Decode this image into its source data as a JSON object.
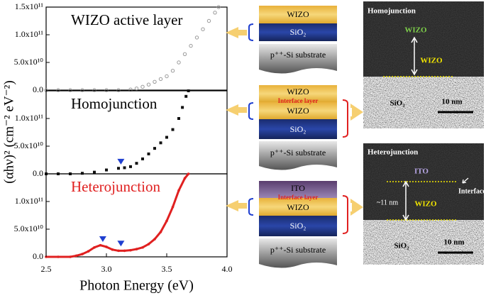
{
  "chart_data": [
    {
      "type": "scatter",
      "title": "WIZO active layer",
      "marker": "open-circle",
      "color": "#9a9a9a",
      "x": [
        2.5,
        2.6,
        2.7,
        2.8,
        2.9,
        3.0,
        3.1,
        3.2,
        3.25,
        3.3,
        3.35,
        3.4,
        3.45,
        3.5,
        3.55,
        3.6,
        3.65,
        3.7,
        3.75,
        3.8,
        3.85,
        3.9,
        3.93
      ],
      "values": [
        0,
        0,
        0,
        0,
        0,
        0,
        0,
        1000000000.0,
        3000000000.0,
        6000000000.0,
        10000000000.0,
        15000000000.0,
        20000000000.0,
        25000000000.0,
        35000000000.0,
        50000000000.0,
        65000000000.0,
        80000000000.0,
        95000000000.0,
        110000000000.0,
        125000000000.0,
        140000000000.0,
        150000000000.0
      ],
      "xlim": [
        2.5,
        4.0
      ],
      "ylim": [
        0,
        150000000000.0
      ],
      "yticks": [
        {
          "value": 0,
          "label": "0.0"
        },
        {
          "value": 50000000000.0,
          "label": "5.0x10¹⁰"
        },
        {
          "value": 100000000000.0,
          "label": "1.0x10¹¹"
        },
        {
          "value": 150000000000.0,
          "label": "1.5x10¹¹"
        }
      ]
    },
    {
      "type": "scatter",
      "title": "Homojunction",
      "marker": "square",
      "color": "#111111",
      "x": [
        2.5,
        2.6,
        2.7,
        2.8,
        2.9,
        3.0,
        3.1,
        3.15,
        3.2,
        3.25,
        3.3,
        3.35,
        3.4,
        3.45,
        3.5,
        3.55,
        3.6,
        3.63,
        3.66,
        3.68
      ],
      "values": [
        0,
        0,
        0,
        1000000000.0,
        3000000000.0,
        7000000000.0,
        10000000000.0,
        11000000000.0,
        13000000000.0,
        19000000000.0,
        27000000000.0,
        36000000000.0,
        46000000000.0,
        56000000000.0,
        66000000000.0,
        80000000000.0,
        100000000000.0,
        120000000000.0,
        140000000000.0,
        150000000000.0
      ],
      "markers": {
        "x": [
          3.12
        ],
        "y": [
          22000000000.0
        ],
        "color": "#1f3fd0"
      },
      "xlim": [
        2.5,
        4.0
      ],
      "ylim": [
        0,
        150000000000.0
      ],
      "yticks": [
        {
          "value": 0,
          "label": "0.0"
        },
        {
          "value": 50000000000.0,
          "label": "5.0x10¹⁰"
        },
        {
          "value": 100000000000.0,
          "label": "1.0x10¹¹"
        }
      ],
      "ylabel": "(αhν)² (cm⁻² eV⁻²)"
    },
    {
      "type": "line",
      "title": "Heterojunction",
      "marker": "dot",
      "color": "#e02020",
      "x": [
        2.5,
        2.6,
        2.7,
        2.75,
        2.8,
        2.85,
        2.9,
        2.95,
        3.0,
        3.05,
        3.1,
        3.15,
        3.2,
        3.25,
        3.3,
        3.35,
        3.4,
        3.45,
        3.5,
        3.55,
        3.6,
        3.65,
        3.68
      ],
      "values": [
        0,
        0,
        0,
        2000000000.0,
        5000000000.0,
        10000000000.0,
        17000000000.0,
        21000000000.0,
        18000000000.0,
        13000000000.0,
        11000000000.0,
        11000000000.0,
        12000000000.0,
        14000000000.0,
        17000000000.0,
        23000000000.0,
        32000000000.0,
        45000000000.0,
        65000000000.0,
        90000000000.0,
        120000000000.0,
        142000000000.0,
        150000000000.0
      ],
      "markers": {
        "x": [
          2.97,
          3.12
        ],
        "y": [
          32000000000.0,
          24000000000.0
        ],
        "color": "#1f3fd0"
      },
      "xlim": [
        2.5,
        4.0
      ],
      "ylim": [
        0,
        150000000000.0
      ],
      "yticks": [
        {
          "value": 0,
          "label": "0.0"
        },
        {
          "value": 50000000000.0,
          "label": "5.0x10¹⁰"
        },
        {
          "value": 100000000000.0,
          "label": "1.0x10¹¹"
        }
      ],
      "xticks": [
        2.5,
        {
          "value": 3,
          "label": "3.0"
        },
        3.5,
        {
          "value": 4,
          "label": "4.0"
        }
      ],
      "xlabel": "Photon Energy (eV)"
    }
  ],
  "diagrams": [
    {
      "layers": [
        "WIZO",
        "SiO₂",
        "p⁺⁺-Si substrate"
      ]
    },
    {
      "layers": [
        "WIZO",
        "Interface layer",
        "WIZO",
        "SiO₂",
        "p⁺⁺-Si substrate"
      ]
    },
    {
      "layers": [
        "ITO",
        "Interface layer",
        "WIZO",
        "SiO₂",
        "p⁺⁺-Si substrate"
      ]
    }
  ],
  "tem_images": [
    {
      "title": "Homojunction",
      "labels": [
        "WIZO",
        "WIZO",
        "SiO₂",
        "10 nm"
      ]
    },
    {
      "title": "Heterojunction",
      "labels": [
        "ITO",
        "Interface",
        "~11 nm",
        "WIZO",
        "SiO₂",
        "10 nm"
      ]
    }
  ]
}
